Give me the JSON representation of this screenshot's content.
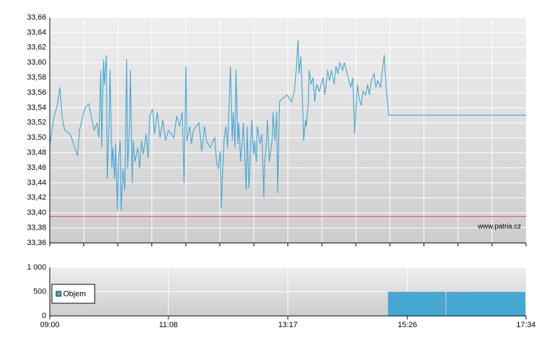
{
  "chart_data": [
    {
      "type": "line",
      "color": "#4ea7d2",
      "x": [
        "09:00",
        "09:04",
        "09:08",
        "09:11",
        "09:13",
        "09:16",
        "09:22",
        "09:30",
        "09:32",
        "09:38",
        "09:42",
        "09:48",
        "09:51",
        "09:53",
        "09:55",
        "09:56",
        "09:58",
        "09:59",
        "10:01",
        "10:02",
        "10:04",
        "10:05",
        "10:07",
        "10:08",
        "10:10",
        "10:11",
        "10:13",
        "10:14",
        "10:16",
        "10:17",
        "10:19",
        "10:21",
        "10:23",
        "10:24",
        "10:26",
        "10:27",
        "10:29",
        "10:30",
        "10:32",
        "10:35",
        "10:37",
        "10:39",
        "10:41",
        "10:44",
        "10:46",
        "10:48",
        "10:51",
        "10:53",
        "10:56",
        "10:59",
        "11:02",
        "11:05",
        "11:08",
        "11:14",
        "11:17",
        "11:20",
        "11:23",
        "11:25",
        "11:27",
        "11:28",
        "11:31",
        "11:33",
        "11:35",
        "11:41",
        "11:44",
        "11:47",
        "11:49",
        "11:53",
        "11:58",
        "12:00",
        "12:02",
        "12:04",
        "12:05",
        "12:08",
        "12:10",
        "12:12",
        "12:14",
        "12:15",
        "12:17",
        "12:18",
        "12:20",
        "12:21",
        "12:23",
        "12:24",
        "12:26",
        "12:29",
        "12:30",
        "12:32",
        "12:33",
        "12:35",
        "12:37",
        "12:38",
        "12:40",
        "12:41",
        "12:43",
        "12:44",
        "12:47",
        "12:49",
        "12:51",
        "12:52",
        "12:54",
        "12:55",
        "12:57",
        "13:00",
        "13:01",
        "13:03",
        "13:05",
        "13:06",
        "13:08",
        "13:11",
        "13:16",
        "13:21",
        "13:24",
        "13:26",
        "13:28",
        "13:29",
        "13:31",
        "13:33",
        "13:34",
        "13:36",
        "13:37",
        "13:39",
        "13:40",
        "13:42",
        "13:44",
        "13:46",
        "13:48",
        "13:51",
        "13:53",
        "13:55",
        "13:57",
        "14:00",
        "14:02",
        "14:04",
        "14:07",
        "14:09",
        "14:11",
        "14:13",
        "14:16",
        "14:18",
        "14:20",
        "14:22",
        "14:25",
        "14:27",
        "14:29",
        "14:32",
        "14:34",
        "14:36",
        "14:38",
        "14:41",
        "14:43",
        "14:45",
        "14:47",
        "14:50",
        "14:52",
        "14:54",
        "14:57",
        "14:59",
        "15:01",
        "15:03",
        "15:06",
        "17:34"
      ],
      "values": [
        33.49,
        33.525,
        33.543,
        33.567,
        33.53,
        33.51,
        33.505,
        33.476,
        33.51,
        33.54,
        33.545,
        33.51,
        33.52,
        33.5,
        33.59,
        33.487,
        33.604,
        33.57,
        33.61,
        33.445,
        33.52,
        33.59,
        33.459,
        33.487,
        33.445,
        33.492,
        33.403,
        33.468,
        33.496,
        33.403,
        33.459,
        33.43,
        33.604,
        33.459,
        33.515,
        33.59,
        33.44,
        33.496,
        33.468,
        33.487,
        33.459,
        33.496,
        33.478,
        33.505,
        33.473,
        33.529,
        33.538,
        33.505,
        33.534,
        33.5,
        33.524,
        33.496,
        33.51,
        33.5,
        33.529,
        33.515,
        33.534,
        33.44,
        33.595,
        33.496,
        33.515,
        33.492,
        33.51,
        33.52,
        33.482,
        33.515,
        33.496,
        33.487,
        33.5,
        33.468,
        33.459,
        33.482,
        33.406,
        33.496,
        33.515,
        33.487,
        33.562,
        33.595,
        33.496,
        33.534,
        33.487,
        33.59,
        33.492,
        33.52,
        33.468,
        33.52,
        33.487,
        33.43,
        33.515,
        33.433,
        33.496,
        33.524,
        33.478,
        33.496,
        33.468,
        33.515,
        33.492,
        33.505,
        33.42,
        33.468,
        33.496,
        33.524,
        33.468,
        33.496,
        33.534,
        33.496,
        33.534,
        33.426,
        33.548,
        33.552,
        33.557,
        33.548,
        33.562,
        33.59,
        33.63,
        33.585,
        33.608,
        33.543,
        33.496,
        33.524,
        33.515,
        33.548,
        33.59,
        33.571,
        33.58,
        33.548,
        33.571,
        33.562,
        33.571,
        33.58,
        33.557,
        33.59,
        33.576,
        33.59,
        33.571,
        33.595,
        33.585,
        33.6,
        33.59,
        33.6,
        33.59,
        33.58,
        33.567,
        33.58,
        33.505,
        33.571,
        33.552,
        33.543,
        33.562,
        33.557,
        33.571,
        33.557,
        33.576,
        33.585,
        33.567,
        33.576,
        33.567,
        33.59,
        33.61,
        33.567,
        33.53,
        33.53
      ],
      "xlim": [
        "09:00",
        "17:34"
      ],
      "ylim": [
        33.36,
        33.66
      ],
      "yticks": [
        {
          "value": 33.36,
          "label": "33,36"
        },
        {
          "value": 33.38,
          "label": "33,38"
        },
        {
          "value": 33.4,
          "label": "33,40"
        },
        {
          "value": 33.42,
          "label": "33,42"
        },
        {
          "value": 33.44,
          "label": "33,44"
        },
        {
          "value": 33.46,
          "label": "33,46"
        },
        {
          "value": 33.48,
          "label": "33,48"
        },
        {
          "value": 33.5,
          "label": "33,50"
        },
        {
          "value": 33.52,
          "label": "33,52"
        },
        {
          "value": 33.54,
          "label": "33,54"
        },
        {
          "value": 33.56,
          "label": "33,56"
        },
        {
          "value": 33.58,
          "label": "33,58"
        },
        {
          "value": 33.6,
          "label": "33,60"
        },
        {
          "value": 33.62,
          "label": "33,62"
        },
        {
          "value": 33.64,
          "label": "33,64"
        },
        {
          "value": 33.66,
          "label": "33,66"
        }
      ],
      "reference_line": {
        "value": 33.395,
        "color": "#e05a5a"
      },
      "annotation": "www.patria.cz",
      "grid": true
    },
    {
      "type": "bar",
      "series": [
        {
          "name": "Objem",
          "color": "#46a8d2",
          "x": [
            "15:05",
            "16:08"
          ],
          "values": [
            500,
            500
          ]
        }
      ],
      "xlim": [
        "09:00",
        "17:34"
      ],
      "xticks": [
        "09:00",
        "11:08",
        "13:17",
        "15:26",
        "17:34"
      ],
      "ylim": [
        0,
        1000
      ],
      "yticks": [
        0,
        500,
        {
          "value": 1000,
          "label": "1 000"
        }
      ],
      "legend": "upper left",
      "grid": true
    }
  ]
}
